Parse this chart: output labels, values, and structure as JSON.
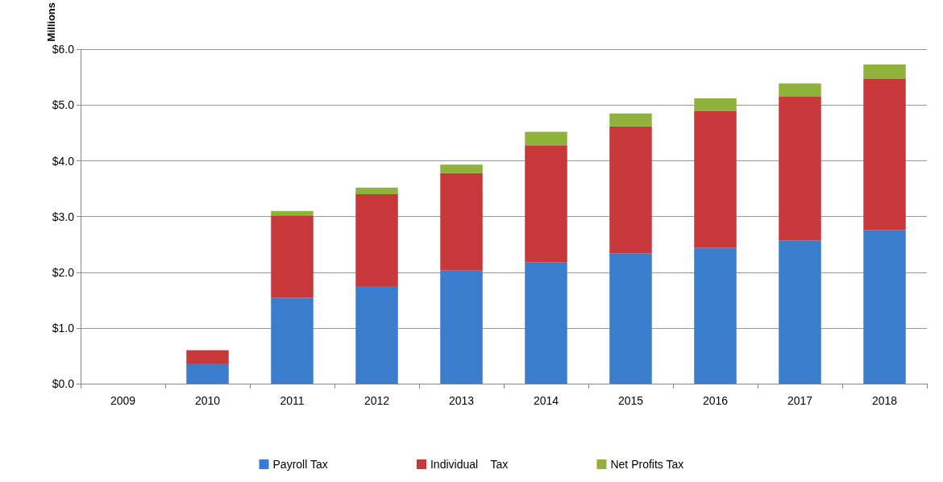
{
  "chart_data": {
    "type": "bar",
    "stacked": true,
    "ylabel": "Millions",
    "categories": [
      "2009",
      "2010",
      "2011",
      "2012",
      "2013",
      "2014",
      "2015",
      "2016",
      "2017",
      "2018"
    ],
    "series": [
      {
        "name": "Payroll Tax",
        "color": "#3a7dcc",
        "values": [
          0,
          0.36,
          1.54,
          1.75,
          2.03,
          2.18,
          2.34,
          2.44,
          2.57,
          2.76
        ]
      },
      {
        "name": "Individual    Tax",
        "color": "#c8373a",
        "values": [
          0,
          0.24,
          1.48,
          1.65,
          1.75,
          2.1,
          2.28,
          2.45,
          2.58,
          2.71
        ]
      },
      {
        "name": "Net Profits Tax",
        "color": "#8fb33a",
        "values": [
          0,
          0,
          0.08,
          0.12,
          0.15,
          0.24,
          0.23,
          0.23,
          0.24,
          0.26
        ]
      }
    ],
    "ylim": [
      0,
      6
    ],
    "yticks": [
      {
        "value": 0,
        "label": "$0.0"
      },
      {
        "value": 1,
        "label": "$1.0"
      },
      {
        "value": 2,
        "label": "$2.0"
      },
      {
        "value": 3,
        "label": "$3.0"
      },
      {
        "value": 4,
        "label": "$4.0"
      },
      {
        "value": 5,
        "label": "$5.0"
      },
      {
        "value": 6,
        "label": "$6.0"
      }
    ],
    "grid": "y",
    "legend": "bottom"
  }
}
